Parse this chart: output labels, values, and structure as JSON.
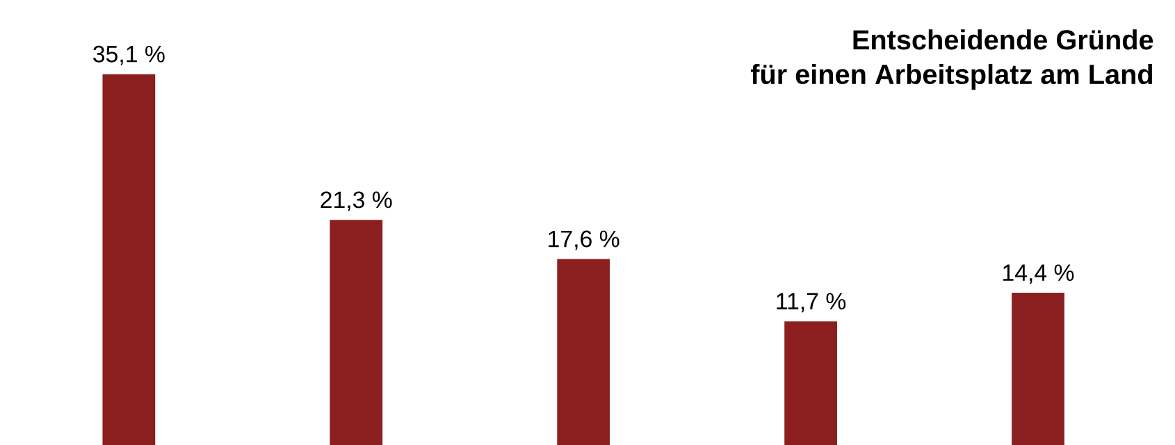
{
  "chart_data": {
    "type": "bar",
    "title": "Entscheidende Gründe\nfür einen Arbeitsplatz am Land",
    "categories": [
      null,
      null,
      null,
      null,
      null
    ],
    "values": [
      35.1,
      21.3,
      17.6,
      11.7,
      14.4
    ],
    "value_labels": [
      "35,1 %",
      "21,3 %",
      "17,6 %",
      "11,7 %",
      "14,4 %"
    ],
    "color": "#8b1f1f"
  }
}
